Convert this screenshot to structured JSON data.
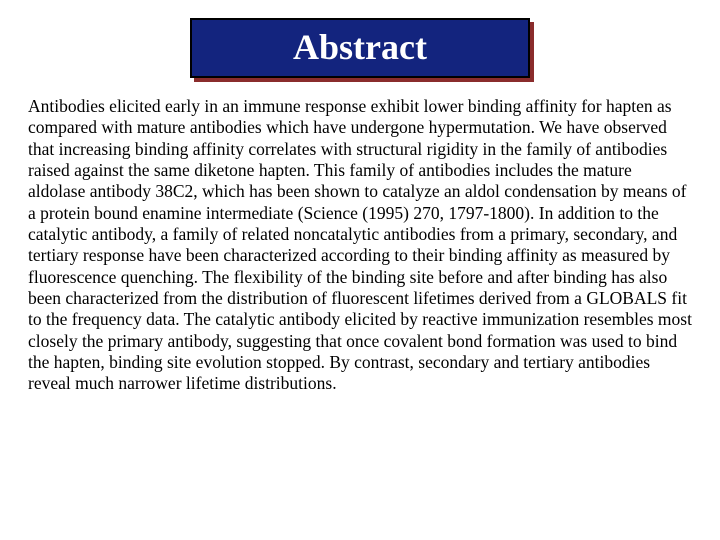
{
  "title": "Abstract",
  "body": "Antibodies elicited early in an immune response exhibit lower binding affinity for hapten as compared with mature antibodies which have undergone hypermutation.  We have observed that increasing binding affinity correlates with structural rigidity in the family of antibodies raised against the same diketone hapten.  This family of antibodies includes the mature aldolase antibody 38C2, which has been shown to catalyze an aldol condensation by means of a protein bound enamine intermediate (Science (1995) 270, 1797-1800).  In addition to the catalytic antibody, a family of related noncatalytic antibodies from a primary, secondary, and tertiary response have been characterized according to their binding affinity as measured by fluorescence quenching.   The flexibility of the binding site before and after binding has also been characterized from the distribution of fluorescent lifetimes derived from a GLOBALS fit to the frequency data.  The catalytic antibody elicited by reactive immunization resembles most closely the primary antibody, suggesting that once covalent bond formation was used to bind the hapten, binding site evolution stopped.  By contrast, secondary and tertiary antibodies reveal much narrower lifetime distributions.",
  "style": {
    "title_box_bg": "#13247e",
    "title_box_border": "#000000",
    "title_box_shadow": "#8a2c2c",
    "title_color": "#ffffff",
    "title_fontsize": 36,
    "body_color": "#000000",
    "body_fontsize": 17.5,
    "page_bg": "#ffffff",
    "font_family": "Times New Roman"
  }
}
